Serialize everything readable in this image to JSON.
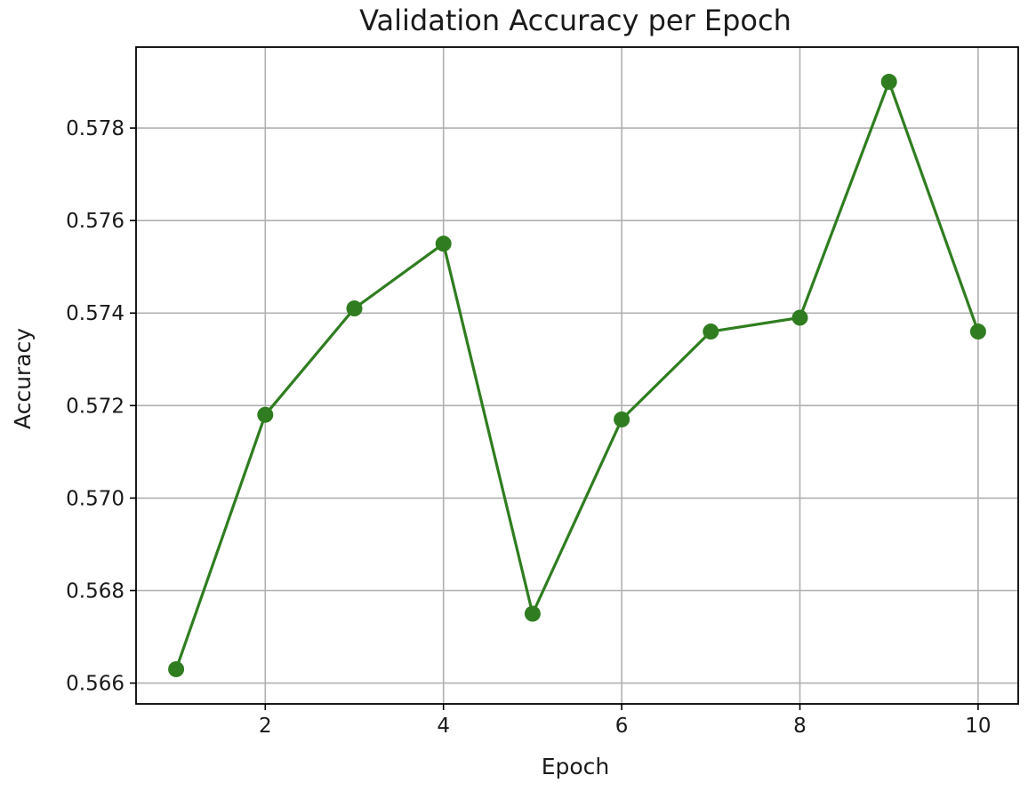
{
  "chart_data": {
    "type": "line",
    "title": "Validation Accuracy per Epoch",
    "xlabel": "Epoch",
    "ylabel": "Accuracy",
    "xlim": [
      0.55,
      10.45
    ],
    "ylim": [
      0.56555,
      0.57975
    ],
    "xticks": [
      2,
      4,
      6,
      8,
      10
    ],
    "yticks": [
      0.566,
      0.568,
      0.57,
      0.572,
      0.574,
      0.576,
      0.578
    ],
    "grid": true,
    "legend": "none",
    "series": [
      {
        "x": [
          1,
          2,
          3,
          4,
          5,
          6,
          7,
          8,
          9,
          10
        ],
        "values": [
          0.5663,
          0.5718,
          0.5741,
          0.5755,
          0.5675,
          0.5717,
          0.5736,
          0.5739,
          0.579,
          0.5736
        ],
        "color": "#2f7d20",
        "marker": "circle"
      }
    ]
  }
}
